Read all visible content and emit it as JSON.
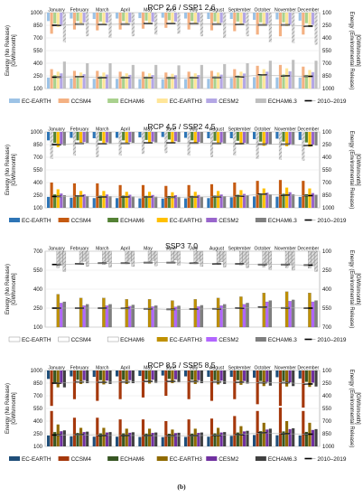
{
  "months": [
    "January",
    "February",
    "March",
    "April",
    "May",
    "June",
    "July",
    "August",
    "September",
    "October",
    "November",
    "December"
  ],
  "left_axis_label": [
    "Energy (No Release)",
    "[GWh/month]"
  ],
  "right_axis_label": [
    "Energy (Environmental Release)",
    "[GWh/month]"
  ],
  "reference_label": "2010–2019",
  "caption": "(b)",
  "chart_data": [
    {
      "type": "bar",
      "title": "RCP 2.6 / SSP1 2.6",
      "style": "light",
      "ylim_left": [
        100,
        1000
      ],
      "ticks_left": [
        100,
        250,
        400,
        550,
        700,
        850,
        1000
      ],
      "ticks_right": [
        100,
        250,
        400,
        550,
        700,
        850,
        1000
      ],
      "series": [
        {
          "name": "EC-EARTH",
          "color": "#9dc3e6"
        },
        {
          "name": "CCSM4",
          "color": "#f4b183"
        },
        {
          "name": "ECHAM6",
          "color": "#a9d18e"
        },
        {
          "name": "EC-EARTH3",
          "color": "#ffe699"
        },
        {
          "name": "CESM2",
          "color": "#b4a7e5"
        },
        {
          "name": "ECHAM6.3",
          "color": "#bfbfbf"
        }
      ],
      "bottom_values": [
        [
          230,
          220,
          215,
          215,
          212,
          210,
          212,
          215,
          225,
          235,
          232,
          230
        ],
        [
          330,
          310,
          310,
          300,
          300,
          290,
          300,
          310,
          330,
          370,
          380,
          360
        ],
        [
          260,
          250,
          245,
          245,
          242,
          240,
          242,
          245,
          255,
          270,
          268,
          262
        ],
        [
          300,
          290,
          290,
          280,
          280,
          275,
          280,
          290,
          300,
          330,
          340,
          320
        ],
        [
          280,
          270,
          265,
          262,
          260,
          258,
          260,
          265,
          278,
          300,
          305,
          295
        ],
        [
          420,
          400,
          400,
          380,
          380,
          375,
          380,
          390,
          400,
          430,
          440,
          430
        ]
      ],
      "top_values": [
        [
          200,
          170,
          175,
          170,
          165,
          160,
          170,
          175,
          175,
          185,
          180,
          195
        ],
        [
          350,
          300,
          310,
          300,
          290,
          280,
          300,
          310,
          320,
          360,
          380,
          360
        ],
        [
          230,
          200,
          205,
          200,
          195,
          190,
          200,
          205,
          205,
          215,
          215,
          225
        ],
        [
          270,
          230,
          235,
          230,
          225,
          220,
          230,
          235,
          240,
          255,
          260,
          265
        ],
        [
          255,
          215,
          220,
          215,
          210,
          205,
          215,
          220,
          225,
          235,
          240,
          245
        ],
        [
          450,
          380,
          400,
          380,
          360,
          350,
          380,
          400,
          380,
          450,
          460,
          480
        ]
      ],
      "reference_bottom": [
        235,
        240,
        230,
        230,
        228,
        225,
        228,
        232,
        240,
        262,
        250,
        245
      ],
      "reference_top": [
        250,
        235,
        240,
        235,
        230,
        230,
        232,
        235,
        240,
        245,
        245,
        260
      ]
    },
    {
      "type": "bar",
      "title": "RCP 4.5 / SSP2 4.5",
      "style": "saturated",
      "ylim_left": [
        100,
        1000
      ],
      "ticks_left": [
        100,
        250,
        400,
        550,
        700,
        850,
        1000
      ],
      "ticks_right": [
        100,
        250,
        400,
        550,
        700,
        850,
        1000
      ],
      "series": [
        {
          "name": "EC-EARTH",
          "color": "#2e75b6"
        },
        {
          "name": "CCSM4",
          "color": "#c55a11"
        },
        {
          "name": "ECHAM6",
          "color": "#548235"
        },
        {
          "name": "EC-EARTH3",
          "color": "#ffc000"
        },
        {
          "name": "CESM2",
          "color": "#9966cc"
        },
        {
          "name": "ECHAM6.3",
          "color": "#808080"
        }
      ],
      "bottom_values": [
        [
          230,
          220,
          215,
          215,
          212,
          210,
          212,
          215,
          225,
          235,
          232,
          230
        ],
        [
          400,
          390,
          390,
          370,
          370,
          360,
          370,
          380,
          400,
          420,
          430,
          420
        ],
        [
          260,
          250,
          245,
          245,
          242,
          240,
          242,
          245,
          255,
          270,
          268,
          262
        ],
        [
          320,
          300,
          300,
          290,
          290,
          285,
          290,
          300,
          310,
          330,
          340,
          330
        ],
        [
          270,
          260,
          258,
          255,
          252,
          250,
          252,
          258,
          265,
          280,
          285,
          275
        ],
        [
          250,
          240,
          238,
          235,
          232,
          230,
          232,
          238,
          245,
          255,
          260,
          255
        ]
      ],
      "top_values": [
        [
          200,
          170,
          175,
          170,
          165,
          160,
          170,
          175,
          175,
          185,
          180,
          195
        ],
        [
          420,
          380,
          400,
          380,
          360,
          350,
          380,
          400,
          380,
          420,
          430,
          440
        ],
        [
          230,
          200,
          205,
          200,
          195,
          190,
          200,
          205,
          205,
          215,
          215,
          225
        ],
        [
          280,
          240,
          245,
          240,
          235,
          230,
          240,
          245,
          250,
          265,
          270,
          275
        ],
        [
          250,
          220,
          225,
          220,
          215,
          210,
          220,
          225,
          230,
          240,
          245,
          250
        ],
        [
          260,
          230,
          235,
          230,
          225,
          220,
          230,
          235,
          240,
          250,
          255,
          260
        ]
      ],
      "reference_bottom": [
        235,
        240,
        230,
        230,
        228,
        225,
        228,
        232,
        240,
        262,
        250,
        245
      ],
      "reference_top": [
        250,
        235,
        240,
        235,
        230,
        230,
        232,
        235,
        240,
        245,
        245,
        260
      ]
    },
    {
      "type": "bar",
      "title": "SSP3 7.0",
      "style": "ssp",
      "ylim_left": [
        100,
        700
      ],
      "ticks_left": [
        100,
        250,
        400,
        550,
        700
      ],
      "ticks_right": [
        100,
        250,
        400,
        550,
        700
      ],
      "series": [
        {
          "name": "EC-EARTH",
          "color": "#ffffff"
        },
        {
          "name": "CCSM4",
          "color": "#ffffff"
        },
        {
          "name": "ECHAM6",
          "color": "#ffffff"
        },
        {
          "name": "EC-EARTH3",
          "color": "#bf9000"
        },
        {
          "name": "CESM2",
          "color": "#b266ff"
        },
        {
          "name": "ECHAM6.3",
          "color": "#7f7f7f"
        }
      ],
      "bottom_values": [
        [
          0,
          0,
          0,
          0,
          0,
          0,
          0,
          0,
          0,
          0,
          0,
          0
        ],
        [
          0,
          0,
          0,
          0,
          0,
          0,
          0,
          0,
          0,
          0,
          0,
          0
        ],
        [
          0,
          0,
          0,
          0,
          0,
          0,
          0,
          0,
          0,
          0,
          0,
          0
        ],
        [
          360,
          330,
          330,
          320,
          320,
          310,
          320,
          330,
          340,
          370,
          380,
          370
        ],
        [
          290,
          270,
          270,
          265,
          262,
          260,
          262,
          270,
          280,
          300,
          305,
          300
        ],
        [
          300,
          280,
          280,
          275,
          270,
          268,
          272,
          280,
          290,
          310,
          315,
          310
        ]
      ],
      "top_values": [
        [
          0,
          0,
          0,
          0,
          0,
          0,
          0,
          0,
          0,
          0,
          0,
          0
        ],
        [
          0,
          0,
          0,
          0,
          0,
          0,
          0,
          0,
          0,
          0,
          0,
          0
        ],
        [
          0,
          0,
          0,
          0,
          0,
          0,
          0,
          0,
          0,
          0,
          0,
          0
        ],
        [
          230,
          200,
          205,
          200,
          195,
          190,
          200,
          205,
          210,
          225,
          230,
          235
        ],
        [
          210,
          180,
          185,
          180,
          175,
          170,
          180,
          185,
          190,
          205,
          210,
          215
        ],
        [
          260,
          220,
          225,
          220,
          215,
          210,
          220,
          225,
          230,
          245,
          250,
          260
        ]
      ],
      "reference_bottom": [
        250,
        250,
        250,
        248,
        245,
        240,
        242,
        245,
        250,
        258,
        252,
        250
      ],
      "reference_top": [
        205,
        200,
        195,
        195,
        190,
        190,
        195,
        200,
        200,
        205,
        205,
        210
      ]
    },
    {
      "type": "bar",
      "title": "RCP 8.5 / SSP5 8.5",
      "style": "dark",
      "ylim_left": [
        100,
        1000
      ],
      "ticks_left": [
        100,
        250,
        400,
        550,
        700,
        850,
        1000
      ],
      "ticks_right": [
        100,
        250,
        400,
        550,
        700,
        850,
        1000
      ],
      "series": [
        {
          "name": "EC-EARTH",
          "color": "#1f4e79"
        },
        {
          "name": "CCSM4",
          "color": "#a5380c"
        },
        {
          "name": "ECHAM6",
          "color": "#375623"
        },
        {
          "name": "EC-EARTH3",
          "color": "#8f6a00"
        },
        {
          "name": "CESM2",
          "color": "#7030a0"
        },
        {
          "name": "ECHAM6.3",
          "color": "#404040"
        }
      ],
      "bottom_values": [
        [
          230,
          220,
          215,
          215,
          212,
          210,
          212,
          215,
          225,
          235,
          232,
          230
        ],
        [
          520,
          440,
          440,
          420,
          420,
          400,
          420,
          430,
          460,
          520,
          560,
          520
        ],
        [
          270,
          260,
          255,
          255,
          252,
          250,
          252,
          255,
          265,
          280,
          278,
          272
        ],
        [
          360,
          320,
          320,
          310,
          310,
          300,
          310,
          320,
          340,
          380,
          400,
          380
        ],
        [
          280,
          270,
          265,
          262,
          260,
          258,
          260,
          265,
          278,
          300,
          305,
          295
        ],
        [
          290,
          275,
          270,
          268,
          265,
          262,
          265,
          270,
          285,
          310,
          315,
          305
        ]
      ],
      "top_values": [
        [
          200,
          170,
          175,
          170,
          165,
          160,
          170,
          175,
          175,
          185,
          180,
          195
        ],
        [
          520,
          440,
          460,
          440,
          420,
          400,
          440,
          460,
          440,
          500,
          520,
          540
        ],
        [
          240,
          210,
          215,
          210,
          205,
          200,
          210,
          215,
          215,
          225,
          225,
          235
        ],
        [
          300,
          260,
          265,
          260,
          255,
          250,
          260,
          265,
          270,
          285,
          290,
          295
        ],
        [
          255,
          215,
          220,
          215,
          210,
          205,
          215,
          220,
          225,
          235,
          240,
          245
        ],
        [
          300,
          250,
          260,
          250,
          245,
          240,
          250,
          260,
          255,
          280,
          285,
          290
        ]
      ],
      "reference_bottom": [
        235,
        240,
        230,
        230,
        228,
        225,
        228,
        232,
        240,
        262,
        250,
        245
      ],
      "reference_top": [
        250,
        235,
        240,
        235,
        230,
        230,
        232,
        235,
        240,
        245,
        245,
        260
      ]
    }
  ]
}
